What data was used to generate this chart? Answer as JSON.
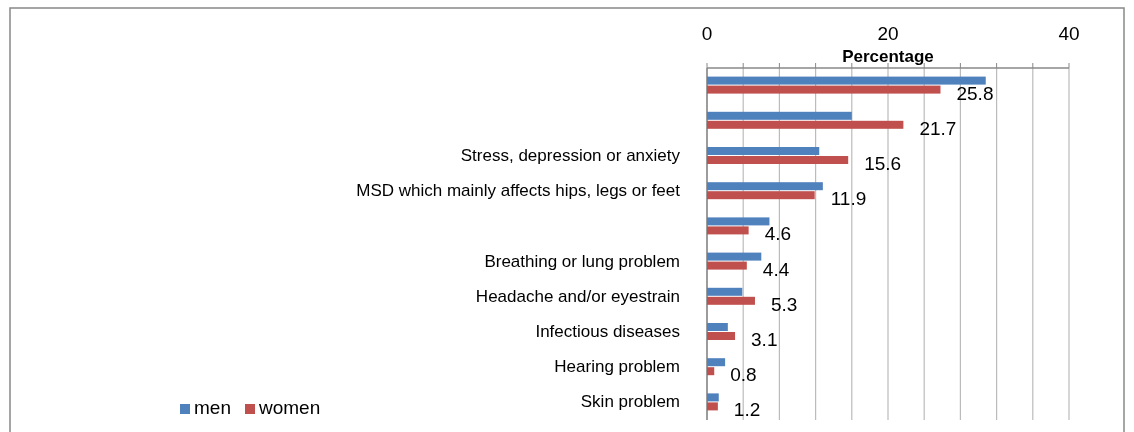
{
  "chart_data": {
    "type": "bar",
    "orientation": "horizontal",
    "xlabel": "Percentage",
    "categories": [
      null,
      null,
      "Stress, depression or anxiety",
      "MSD which mainly affects hips, legs or feet",
      null,
      "Breathing or lung problem",
      "Headache and/or eyestrain",
      "Infectious diseases",
      "Hearing problem",
      "Skin problem"
    ],
    "series": [
      {
        "name": "men",
        "color": "#4f81bd",
        "values": [
          30.8,
          16.0,
          12.4,
          12.8,
          6.9,
          6.0,
          3.9,
          2.3,
          2.0,
          1.3
        ]
      },
      {
        "name": "women",
        "color": "#c0504d",
        "values": [
          25.8,
          21.7,
          15.6,
          11.9,
          4.6,
          4.4,
          5.3,
          3.1,
          0.8,
          1.2
        ],
        "value_labels": [
          "25.8",
          "21.7",
          "15.6",
          "11.9",
          "4.6",
          "4.4",
          "5.3",
          "3.1",
          "0.8",
          "1.2"
        ]
      }
    ],
    "xlim": [
      0,
      40
    ],
    "xticks": [
      0,
      {
        "value": 4,
        "label": null
      },
      {
        "value": 8,
        "label": null
      },
      {
        "value": 12,
        "label": null
      },
      {
        "value": 16,
        "label": null
      },
      20,
      {
        "value": 24,
        "label": null
      },
      {
        "value": 28,
        "label": null
      },
      {
        "value": 32,
        "label": null
      },
      {
        "value": 36,
        "label": null
      },
      40
    ],
    "grid": "x",
    "legend": "bottom left"
  }
}
